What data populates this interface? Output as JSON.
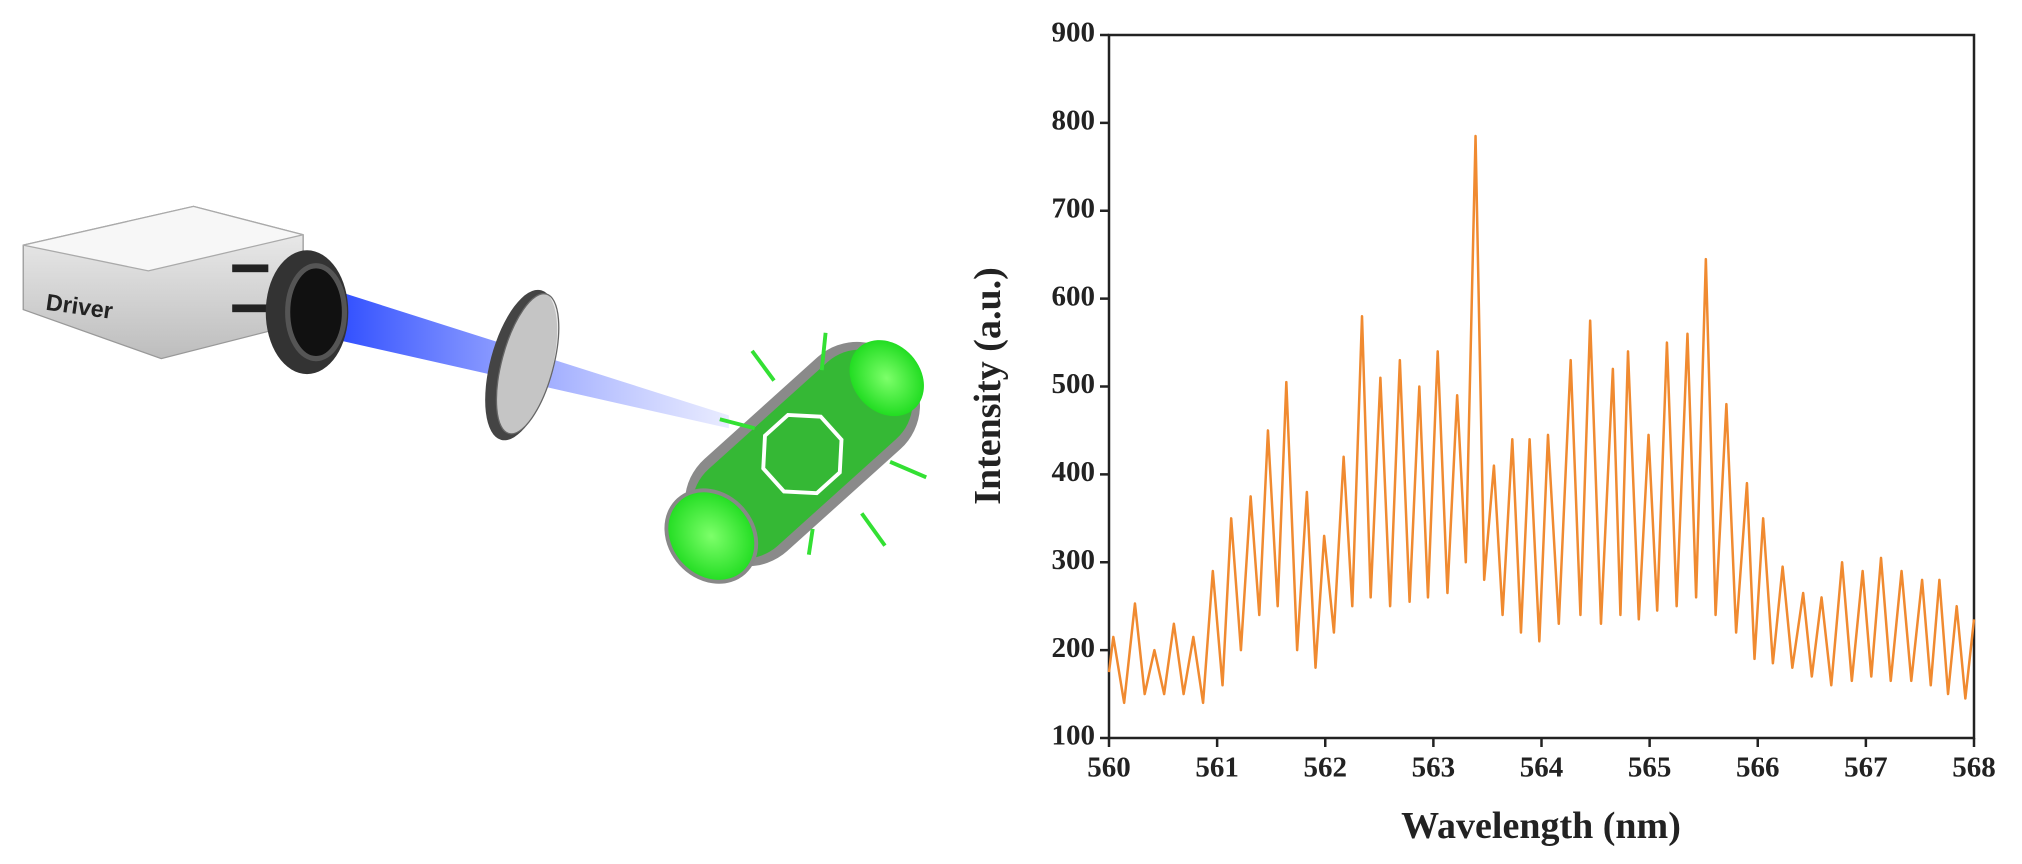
{
  "illustration": {
    "label": "Driver"
  },
  "chart_data": {
    "type": "line",
    "xlabel": "Wavelength (nm)",
    "ylabel": "Intensity (a.u.)",
    "xlim": [
      560,
      568
    ],
    "xticks": [
      560,
      561,
      562,
      563,
      564,
      565,
      566,
      567,
      568
    ],
    "ylim": [
      100,
      900
    ],
    "yticks": [
      100,
      200,
      300,
      400,
      500,
      600,
      700,
      800,
      900
    ],
    "x": [
      560.0,
      560.04,
      560.14,
      560.24,
      560.33,
      560.42,
      560.51,
      560.6,
      560.69,
      560.78,
      560.87,
      560.96,
      561.05,
      561.13,
      561.22,
      561.31,
      561.39,
      561.47,
      561.56,
      561.64,
      561.74,
      561.83,
      561.91,
      561.99,
      562.08,
      562.17,
      562.25,
      562.34,
      562.42,
      562.51,
      562.6,
      562.69,
      562.78,
      562.87,
      562.95,
      563.04,
      563.13,
      563.22,
      563.3,
      563.39,
      563.47,
      563.56,
      563.64,
      563.73,
      563.81,
      563.89,
      563.98,
      564.06,
      564.16,
      564.27,
      564.36,
      564.45,
      564.55,
      564.66,
      564.73,
      564.8,
      564.9,
      564.99,
      565.07,
      565.16,
      565.25,
      565.35,
      565.43,
      565.52,
      565.61,
      565.71,
      565.8,
      565.9,
      565.97,
      566.05,
      566.14,
      566.23,
      566.32,
      566.42,
      566.5,
      566.59,
      566.68,
      566.78,
      566.87,
      566.97,
      567.05,
      567.14,
      567.23,
      567.33,
      567.42,
      567.52,
      567.6,
      567.68,
      567.76,
      567.84,
      567.92,
      568.0
    ],
    "series": [
      {
        "color": "#f08a30",
        "values": [
          175,
          215,
          140,
          253,
          150,
          200,
          150,
          230,
          150,
          215,
          140,
          290,
          160,
          350,
          200,
          375,
          240,
          450,
          250,
          505,
          200,
          380,
          180,
          330,
          220,
          420,
          250,
          580,
          260,
          510,
          250,
          530,
          255,
          500,
          260,
          540,
          265,
          490,
          300,
          785,
          280,
          410,
          240,
          440,
          220,
          440,
          210,
          445,
          230,
          530,
          240,
          575,
          230,
          520,
          240,
          540,
          235,
          445,
          245,
          550,
          250,
          560,
          260,
          645,
          240,
          480,
          220,
          390,
          190,
          350,
          185,
          295,
          180,
          265,
          170,
          260,
          160,
          300,
          165,
          290,
          170,
          305,
          165,
          290,
          165,
          280,
          160,
          280,
          150,
          250,
          145,
          235
        ]
      }
    ]
  }
}
